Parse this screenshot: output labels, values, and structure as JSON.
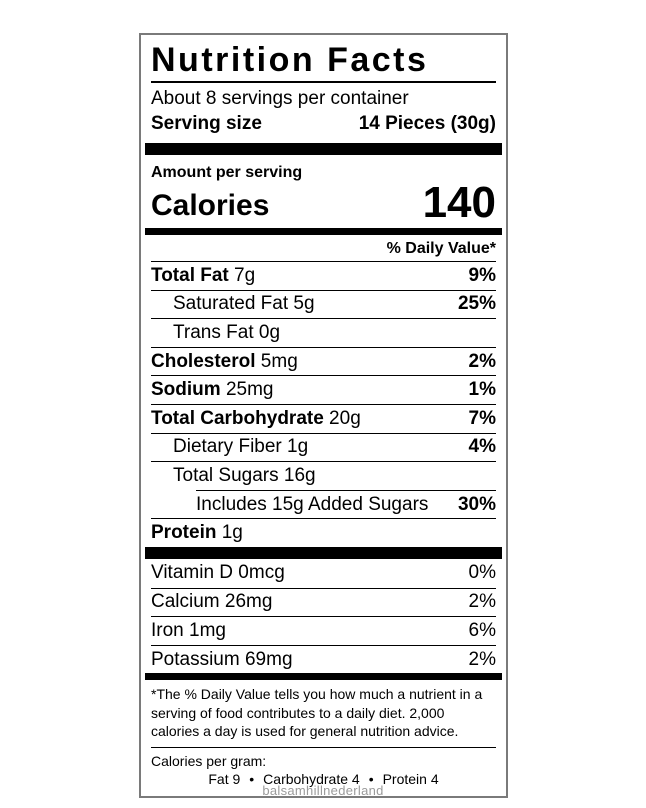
{
  "label": {
    "title": "Nutrition Facts",
    "servings_per_container": "About 8 servings per container",
    "serving_size_label": "Serving size",
    "serving_size_value": "14 Pieces (30g)",
    "amount_per_serving": "Amount per serving",
    "calories_label": "Calories",
    "calories_value": "140",
    "daily_value_header": "% Daily Value*",
    "nutrient_rows": [
      {
        "name": "Total Fat",
        "amount": "7g",
        "dv": "9%",
        "bold_name": true,
        "indent": 0
      },
      {
        "name": "Saturated Fat",
        "amount": "5g",
        "dv": "25%",
        "bold_name": false,
        "indent": 1
      },
      {
        "name": "Trans Fat",
        "amount": "0g",
        "dv": "",
        "bold_name": false,
        "indent": 1
      },
      {
        "name": "Cholesterol",
        "amount": "5mg",
        "dv": "2%",
        "bold_name": true,
        "indent": 0
      },
      {
        "name": "Sodium",
        "amount": "25mg",
        "dv": "1%",
        "bold_name": true,
        "indent": 0
      },
      {
        "name": "Total Carbohydrate",
        "amount": "20g",
        "dv": "7%",
        "bold_name": true,
        "indent": 0
      },
      {
        "name": "Dietary Fiber",
        "amount": "1g",
        "dv": "4%",
        "bold_name": false,
        "indent": 1
      },
      {
        "name": "Total Sugars",
        "amount": "16g",
        "dv": "",
        "bold_name": false,
        "indent": 1
      },
      {
        "name": "Includes 15g Added Sugars",
        "amount": "",
        "dv": "30%",
        "bold_name": false,
        "indent": 2
      },
      {
        "name": "Protein",
        "amount": "1g",
        "dv": "",
        "bold_name": true,
        "indent": 0
      }
    ],
    "vitamin_rows": [
      {
        "name": "Vitamin D",
        "amount": "0mcg",
        "dv": "0%"
      },
      {
        "name": "Calcium",
        "amount": "26mg",
        "dv": "2%"
      },
      {
        "name": "Iron",
        "amount": "1mg",
        "dv": "6%"
      },
      {
        "name": "Potassium",
        "amount": "69mg",
        "dv": "2%"
      }
    ],
    "footnote": "*The % Daily Value tells you how much a nutrient in a serving of food contributes to a daily diet. 2,000 calories a day is used for general nutrition advice.",
    "calories_per_gram": {
      "label": "Calories per gram:",
      "items": [
        "Fat 9",
        "Carbohydrate 4",
        "Protein 4"
      ],
      "separator": "•"
    }
  },
  "watermark": "balsamhillnederland",
  "colors": {
    "text": "#000000",
    "border": "#7a7a7a",
    "bar": "#000000",
    "watermark": "#9b9b9b",
    "background": "#ffffff"
  }
}
